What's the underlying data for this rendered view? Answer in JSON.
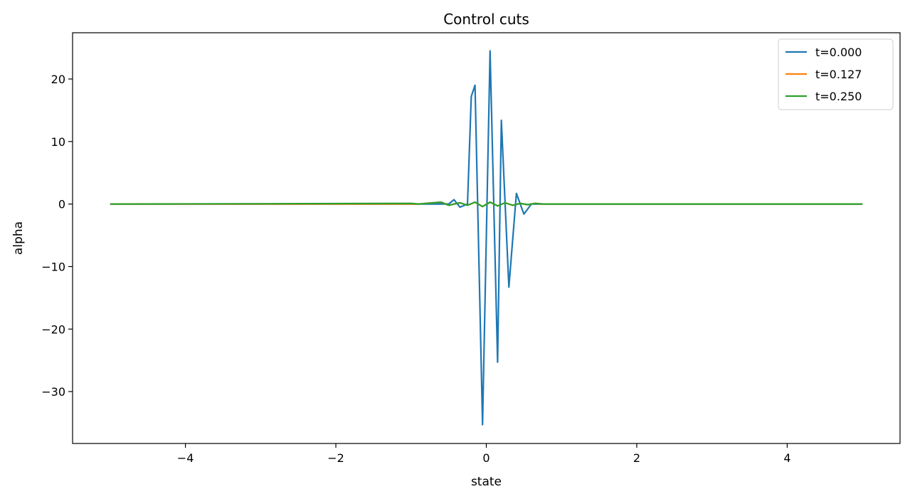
{
  "chart_data": {
    "type": "line",
    "title": "Control cuts",
    "xlabel": "state",
    "ylabel": "alpha",
    "xlim": [
      -5.5,
      5.5
    ],
    "ylim": [
      -38.3,
      27.4
    ],
    "xticks": [
      -4,
      -2,
      0,
      2,
      4
    ],
    "xtick_labels": [
      "−4",
      "−2",
      "0",
      "2",
      "4"
    ],
    "yticks": [
      -30,
      -20,
      -10,
      0,
      10,
      20
    ],
    "ytick_labels": [
      "−30",
      "−20",
      "−10",
      "0",
      "10",
      "20"
    ],
    "grid": false,
    "legend_position": "top-right",
    "series": [
      {
        "name": "t=0.000",
        "color": "#1f77b4",
        "x": [
          -5.0,
          -1.0,
          -0.8,
          -0.6,
          -0.5,
          -0.43,
          -0.35,
          -0.25,
          -0.2,
          -0.15,
          -0.05,
          0.05,
          0.15,
          0.2,
          0.3,
          0.4,
          0.5,
          0.6,
          0.7,
          1.0,
          5.0
        ],
        "y": [
          0,
          0,
          0,
          0,
          0,
          0.7,
          -0.5,
          0,
          17.2,
          19.0,
          -35.3,
          24.5,
          -25.3,
          13.4,
          -13.3,
          1.7,
          -1.6,
          0,
          0,
          0,
          0
        ]
      },
      {
        "name": "t=0.127",
        "color": "#ff7f0e",
        "x": [
          -5.0,
          -1.0,
          -0.9,
          -0.6,
          -0.5,
          -0.35,
          -0.25,
          -0.15,
          -0.05,
          0.05,
          0.15,
          0.25,
          0.35,
          0.45,
          0.55,
          0.65,
          0.75,
          1.0,
          5.0
        ],
        "y": [
          0,
          0,
          0,
          0.3,
          -0.2,
          0.2,
          -0.2,
          0.3,
          -0.4,
          0.3,
          -0.3,
          0.2,
          -0.2,
          0.1,
          -0.1,
          0.1,
          0,
          0,
          0
        ]
      },
      {
        "name": "t=0.250",
        "color": "#2ca02c",
        "x": [
          -5.0,
          -1.0,
          -0.9,
          -0.6,
          -0.5,
          -0.35,
          -0.25,
          -0.15,
          -0.05,
          0.05,
          0.15,
          0.25,
          0.35,
          0.45,
          0.55,
          0.65,
          0.75,
          1.0,
          5.0
        ],
        "y": [
          0,
          0.1,
          0,
          0.3,
          -0.2,
          0.2,
          -0.2,
          0.3,
          -0.4,
          0.3,
          -0.3,
          0.2,
          -0.2,
          0.1,
          -0.1,
          0.1,
          0,
          0,
          0
        ]
      }
    ]
  }
}
